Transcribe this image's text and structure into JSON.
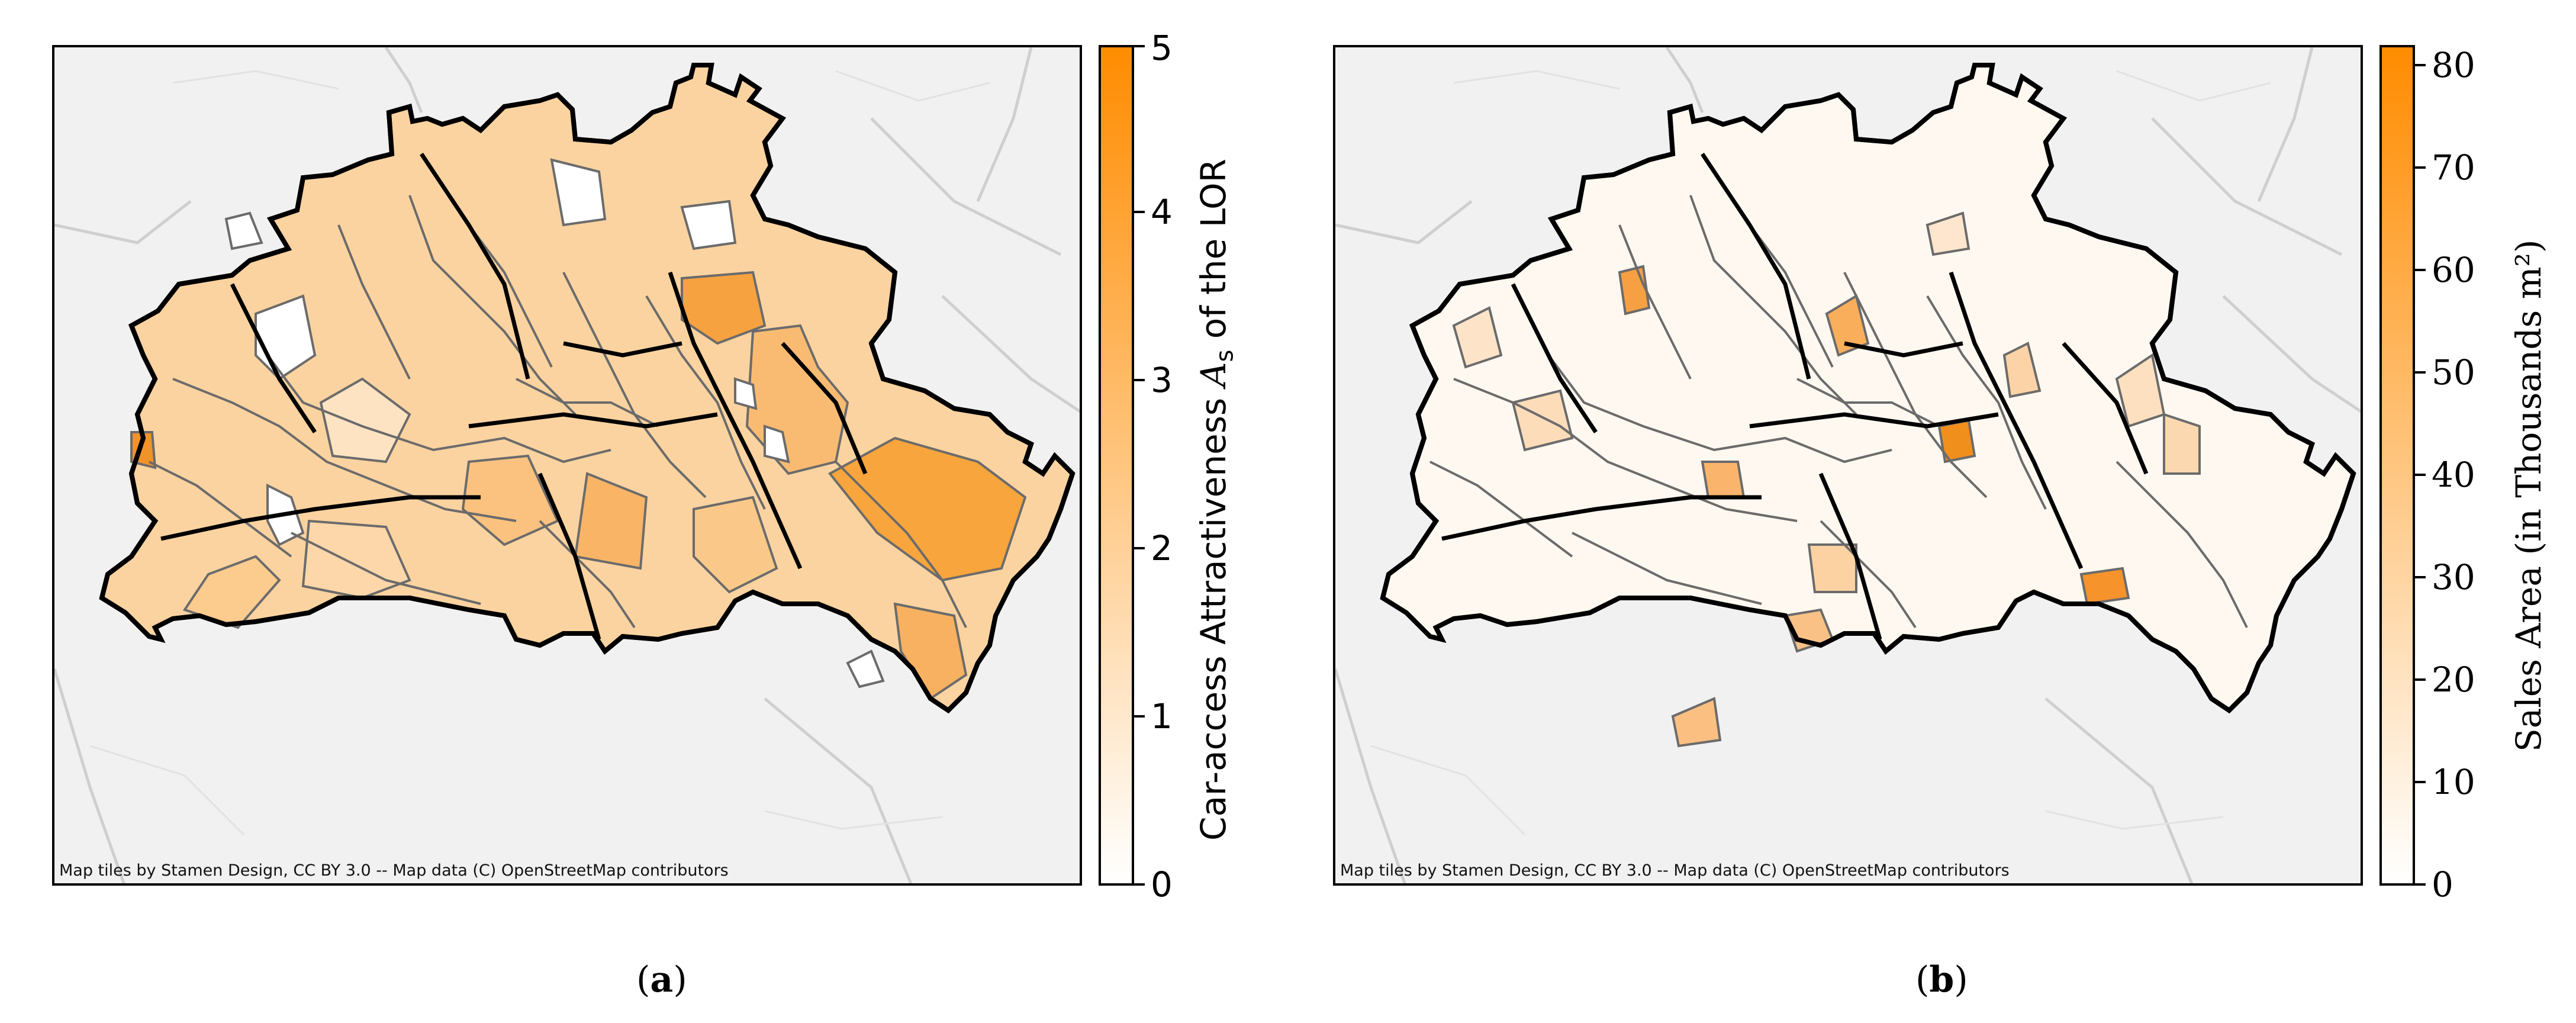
{
  "panels": [
    {
      "caption_letter": "a",
      "attribution": "Map tiles by Stamen Design, CC BY 3.0 -- Map data (C) OpenStreetMap contributors",
      "colorbar": {
        "title_prefix": "Car-access Attractiveness ",
        "title_symbol": "A",
        "title_subscript": "s",
        "title_suffix": " of the LOR",
        "ticks": [
          "0",
          "1",
          "2",
          "3",
          "4",
          "5"
        ],
        "range": [
          0,
          5
        ],
        "color_low": "#ffffff",
        "color_high": "#ff8c00"
      }
    },
    {
      "caption_letter": "b",
      "attribution": "Map tiles by Stamen Design, CC BY 3.0 -- Map data (C) OpenStreetMap contributors",
      "colorbar": {
        "title": "Sales Area (in Thousands m²)",
        "ticks": [
          "0",
          "10",
          "20",
          "30",
          "40",
          "50",
          "60",
          "70",
          "80"
        ],
        "range": [
          0,
          82
        ],
        "color_low": "#ffffff",
        "color_high": "#ff8c00"
      }
    }
  ],
  "colors": {
    "district_border": "#000000",
    "lor_border": "#6b6b6b",
    "basemap": "#f1f1f1",
    "basemap_roads": "#c8c8c8",
    "accent": "#ff8c00"
  }
}
